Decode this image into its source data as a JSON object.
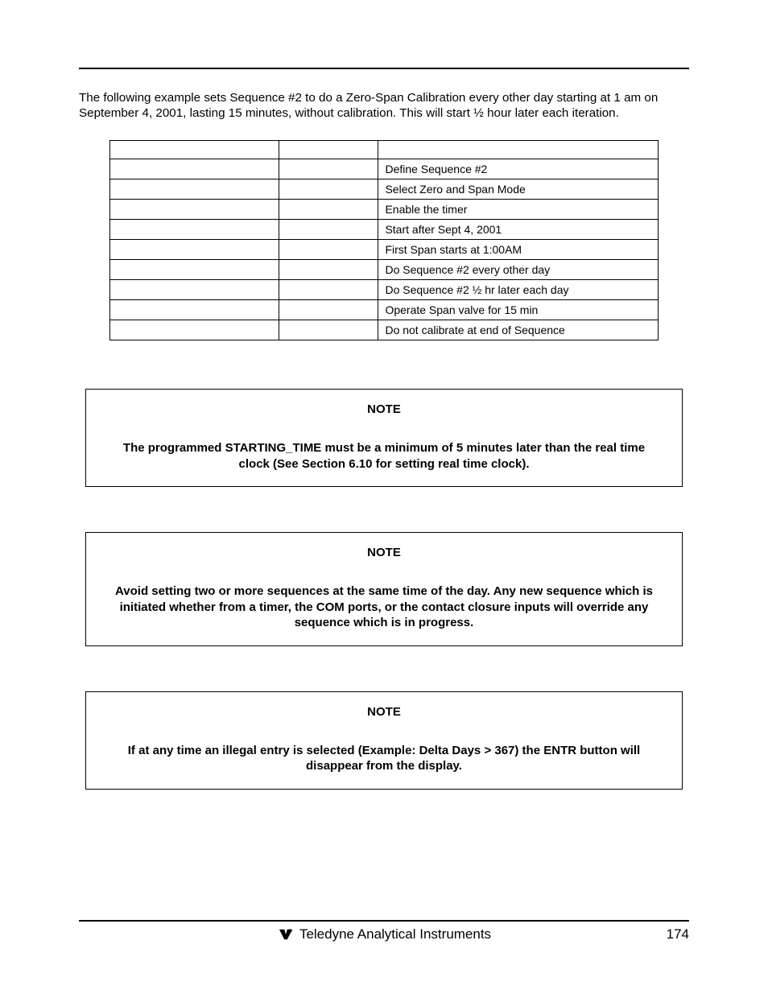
{
  "intro": "The following example sets Sequence #2 to do a Zero-Span Calibration every other day starting at 1 am on September 4, 2001, lasting 15 minutes, without calibration.  This will start ½ hour later each iteration.",
  "table": {
    "rows": [
      {
        "c0": "",
        "c1": "",
        "c2": ""
      },
      {
        "c0": "",
        "c1": "",
        "c2": "Define Sequence #2"
      },
      {
        "c0": "",
        "c1": "",
        "c2": "Select Zero and Span Mode"
      },
      {
        "c0": "",
        "c1": "",
        "c2": "Enable the timer"
      },
      {
        "c0": "",
        "c1": "",
        "c2": "Start after Sept 4, 2001"
      },
      {
        "c0": "",
        "c1": "",
        "c2": "First Span starts at 1:00AM"
      },
      {
        "c0": "",
        "c1": "",
        "c2": "Do Sequence #2 every other day"
      },
      {
        "c0": "",
        "c1": "",
        "c2": "Do Sequence #2 ½ hr later each day"
      },
      {
        "c0": "",
        "c1": "",
        "c2": "Operate Span valve for 15 min"
      },
      {
        "c0": "",
        "c1": "",
        "c2": "Do not calibrate at end of Sequence"
      }
    ]
  },
  "notes": [
    {
      "title": "NOTE",
      "body": "The programmed STARTING_TIME must be a minimum of 5 minutes later than the real time clock (See Section 6.10 for setting real time clock)."
    },
    {
      "title": "NOTE",
      "body": "Avoid setting two or more sequences at the same time of the day.  Any new sequence which is initiated whether from a timer, the COM ports, or the contact closure inputs will override any sequence which is in progress."
    },
    {
      "title": "NOTE",
      "body": "If at any time an illegal entry is selected (Example: Delta Days > 367) the ENTR button will disappear from the display."
    }
  ],
  "footer": {
    "company": "Teledyne Analytical Instruments",
    "page_number": "174"
  },
  "colors": {
    "text": "#000000",
    "background": "#ffffff",
    "rule": "#000000",
    "border": "#000000"
  }
}
